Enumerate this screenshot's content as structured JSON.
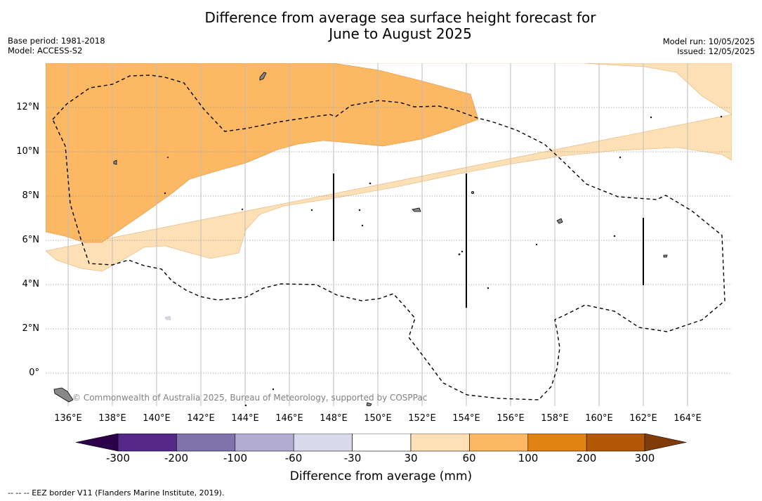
{
  "title_line1": "Difference from average sea surface height forecast for",
  "title_line2": "June to August 2025",
  "base_period": "Base period: 1981-2018",
  "model": "Model: ACCESS-S2",
  "model_run": "Model run: 10/05/2025",
  "issued": "Issued: 12/05/2025",
  "copyright": "© Commonwealth of Australia 2025, Bureau of Meteorology, supported by COSPPac",
  "lat_labels": [
    "12°N",
    "10°N",
    "8°N",
    "6°N",
    "4°N",
    "2°N",
    "0°"
  ],
  "lon_labels": [
    "136°E",
    "138°E",
    "140°E",
    "142°E",
    "144°E",
    "146°E",
    "148°E",
    "150°E",
    "152°E",
    "154°E",
    "156°E",
    "158°E",
    "160°E",
    "162°E",
    "164°E"
  ],
  "colorbar": {
    "label": "Difference from average (mm)",
    "ticks": [
      "-300",
      "-200",
      "-100",
      "-60",
      "-30",
      "30",
      "60",
      "100",
      "200",
      "300"
    ],
    "colors": {
      "below_-300": "#2d004b",
      "-300_-200": "#542788",
      "-200_-100": "#8073ac",
      "-100_-60": "#b2abd2",
      "-60_-30": "#d8daeb",
      "-30_30": "#ffffff",
      "30_60": "#fee0b6",
      "60_100": "#fdb863",
      "100_200": "#e08214",
      "200_300": "#b35806",
      "above_300": "#7f3b08"
    }
  },
  "footnote": "-- -- -- EEZ border V11 (Flanders Marine Institute, 2019)."
}
